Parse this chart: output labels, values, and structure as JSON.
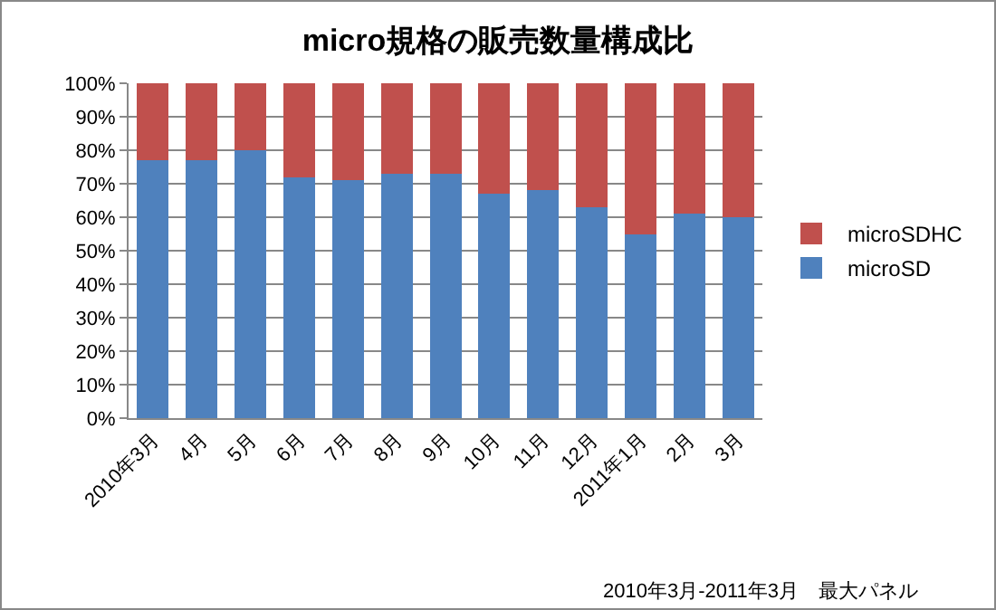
{
  "chart_data": {
    "type": "bar",
    "stacked": true,
    "title": "micro規格の販売数量構成比",
    "categories": [
      "2010年3月",
      "4月",
      "5月",
      "6月",
      "7月",
      "8月",
      "9月",
      "10月",
      "11月",
      "12月",
      "2011年1月",
      "2月",
      "3月"
    ],
    "series": [
      {
        "name": "microSD",
        "color": "#4f81bd",
        "values": [
          77,
          77,
          80,
          72,
          71,
          73,
          73,
          67,
          68,
          63,
          55,
          61,
          60
        ]
      },
      {
        "name": "microSDHC",
        "color": "#c0504d",
        "values": [
          23,
          23,
          20,
          28,
          29,
          27,
          27,
          33,
          32,
          37,
          45,
          39,
          40
        ]
      }
    ],
    "ylim": [
      0,
      100
    ],
    "yticks": [
      {
        "value": 0,
        "label": "0%"
      },
      {
        "value": 10,
        "label": "10%"
      },
      {
        "value": 20,
        "label": "20%"
      },
      {
        "value": 30,
        "label": "30%"
      },
      {
        "value": 40,
        "label": "40%"
      },
      {
        "value": 50,
        "label": "50%"
      },
      {
        "value": 60,
        "label": "60%"
      },
      {
        "value": 70,
        "label": "70%"
      },
      {
        "value": 80,
        "label": "80%"
      },
      {
        "value": 90,
        "label": "90%"
      },
      {
        "value": 100,
        "label": "100%"
      }
    ],
    "grid": "y",
    "legend": "right",
    "annotations": [
      "2010年3月-2011年3月　最大パネル"
    ]
  }
}
